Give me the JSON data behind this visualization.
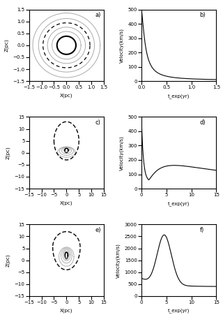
{
  "fig_width": 3.2,
  "fig_height": 4.51,
  "dpi": 100,
  "panel_labels": [
    "a)",
    "b)",
    "c)",
    "d)",
    "e)",
    "f)"
  ],
  "panel_a": {
    "xlabel": "X(pc)",
    "ylabel": "Z(pc)",
    "xlim": [
      -1.5,
      1.5
    ],
    "ylim": [
      -1.5,
      1.5
    ],
    "xticks": [
      -1.5,
      -1.0,
      -0.5,
      0.0,
      0.5,
      1.0,
      1.5
    ],
    "yticks": [
      -1.5,
      -1.0,
      -0.5,
      0.0,
      0.5,
      1.0,
      1.5
    ]
  },
  "panel_b": {
    "xlabel": "t_exp(yr)",
    "ylabel": "Velocity(km/s)",
    "xlim": [
      0,
      1.5
    ],
    "ylim": [
      0,
      500
    ],
    "yticks": [
      0,
      100,
      200,
      300,
      400,
      500
    ]
  },
  "panel_c": {
    "xlabel": "X(pc)",
    "ylabel": "Z(pc)",
    "xlim": [
      -15,
      15
    ],
    "ylim": [
      -15,
      15
    ],
    "xticks": [
      -15,
      -10,
      -5,
      0,
      5,
      10,
      15
    ],
    "yticks": [
      -15,
      -10,
      -5,
      0,
      5,
      10,
      15
    ]
  },
  "panel_d": {
    "xlabel": "t_exp(yr)",
    "ylabel": "Velocity(km/s)",
    "xlim": [
      0,
      15
    ],
    "ylim": [
      0,
      500
    ],
    "yticks": [
      0,
      100,
      200,
      300,
      400,
      500
    ]
  },
  "panel_e": {
    "xlabel": "X(pc)",
    "ylabel": "Z(pc)",
    "xlim": [
      -15,
      15
    ],
    "ylim": [
      -15,
      15
    ],
    "xticks": [
      -15,
      -10,
      -5,
      0,
      5,
      10,
      15
    ],
    "yticks": [
      -15,
      -10,
      -5,
      0,
      5,
      10,
      15
    ]
  },
  "panel_f": {
    "xlabel": "t_exp(yr)",
    "ylabel": "Velocity(km/s)",
    "xlim": [
      0,
      15
    ],
    "ylim": [
      0,
      3000
    ],
    "yticks": [
      0,
      500,
      1000,
      1500,
      2000,
      2500,
      3000
    ]
  },
  "tick_fontsize": 5,
  "label_fontsize": 5,
  "panel_label_fontsize": 6
}
